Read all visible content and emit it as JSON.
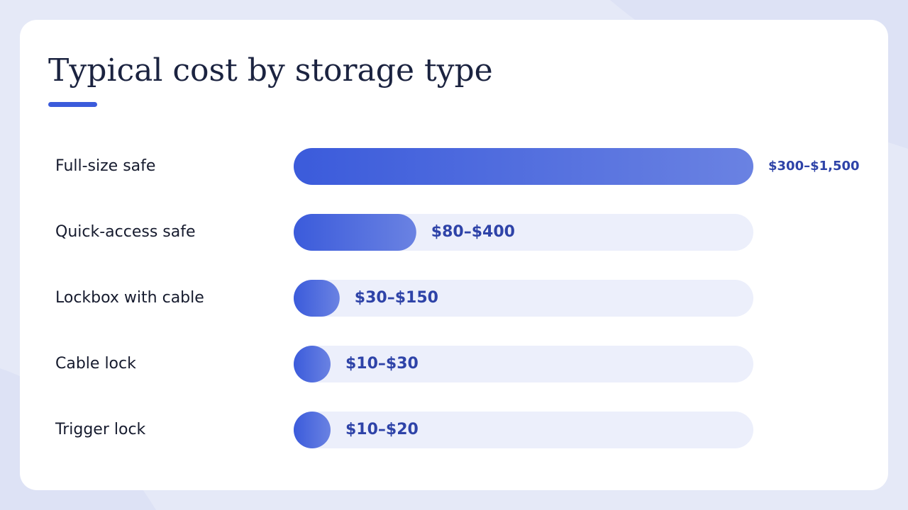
{
  "chart_data": {
    "type": "bar",
    "title": "Typical cost by storage type",
    "categories": [
      "Full-size safe",
      "Quick-access safe",
      "Lockbox with cable",
      "Cable lock",
      "Trigger lock"
    ],
    "values": [
      1500,
      400,
      150,
      30,
      20
    ],
    "value_labels": [
      "$300–$1,500",
      "$80–$400",
      "$30–$150",
      "$10–$30",
      "$10–$20"
    ],
    "color": "#3b5bdb"
  }
}
